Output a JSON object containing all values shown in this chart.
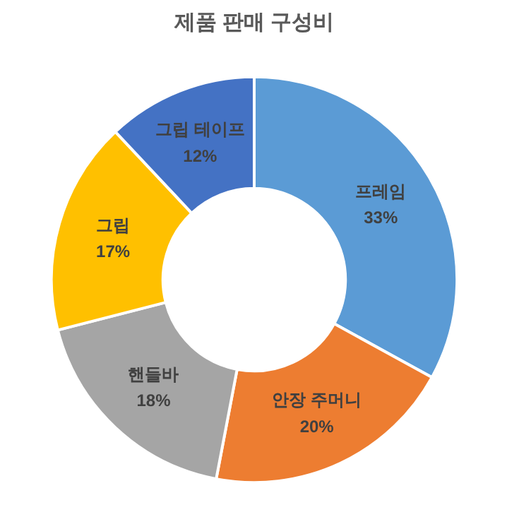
{
  "chart_data": {
    "type": "donut",
    "title": "제품 판매 구성비",
    "categories": [
      "프레임",
      "안장 주머니",
      "핸들바",
      "그립",
      "그립 테이프"
    ],
    "values": [
      33,
      20,
      18,
      17,
      12
    ],
    "value_labels": [
      "33%",
      "20%",
      "18%",
      "17%",
      "12%"
    ],
    "colors": [
      "#5b9bd5",
      "#ed7d31",
      "#a5a5a5",
      "#ffc000",
      "#4472c4"
    ]
  }
}
